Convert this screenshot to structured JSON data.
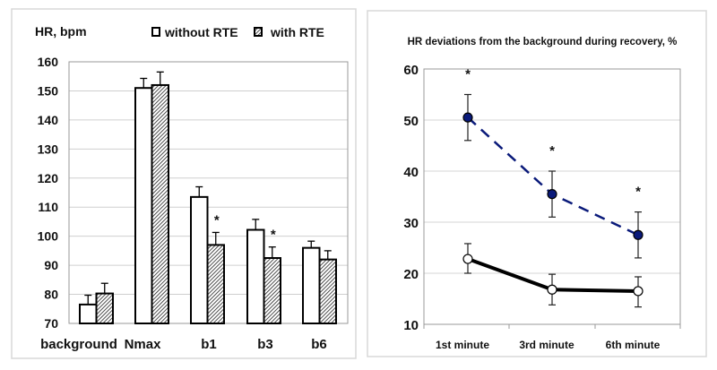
{
  "chart_data": [
    {
      "type": "bar",
      "ylabel": "HR, bpm",
      "categories": [
        "background",
        "Nmax",
        "b1",
        "b3",
        "b6"
      ],
      "ylim": [
        70,
        160
      ],
      "yticks": [
        "70",
        "80",
        "90",
        "100",
        "110",
        "120",
        "130",
        "140",
        "150",
        "160"
      ],
      "grid": true,
      "legend_position": "top-right",
      "series": [
        {
          "name": "without RTE",
          "fill": "#ffffff",
          "values": [
            76.5,
            151,
            113.5,
            102.2,
            96
          ],
          "err_upper": [
            79.7,
            154.3,
            117,
            105.8,
            98.3
          ]
        },
        {
          "name": "with RTE",
          "fill": "hatched",
          "values": [
            80.3,
            152,
            97,
            92.5,
            92
          ],
          "err_upper": [
            83.8,
            156.5,
            101.3,
            96.3,
            95
          ],
          "significance": [
            "",
            "",
            "*",
            "*",
            ""
          ]
        }
      ]
    },
    {
      "type": "line",
      "title": "HR deviations from the background during recovery, %",
      "categories": [
        "1st minute",
        "3rd minute",
        "6th minute"
      ],
      "ylim": [
        10,
        60
      ],
      "yticks": [
        "10",
        "20",
        "30",
        "40",
        "50",
        "60"
      ],
      "grid": true,
      "series": [
        {
          "style": "dashed",
          "color": "#0a1a7a",
          "marker": "filled-circle",
          "values": [
            50.5,
            35.5,
            27.5
          ],
          "err_low": [
            46,
            31,
            23
          ],
          "err_high": [
            55,
            40,
            32
          ],
          "significance": [
            "*",
            "*",
            "*"
          ]
        },
        {
          "style": "solid",
          "color": "#000000",
          "marker": "open-circle",
          "values": [
            22.8,
            16.8,
            16.5
          ],
          "err_low": [
            20,
            13.8,
            13.4
          ],
          "err_high": [
            25.8,
            19.8,
            19.3
          ]
        }
      ]
    }
  ]
}
